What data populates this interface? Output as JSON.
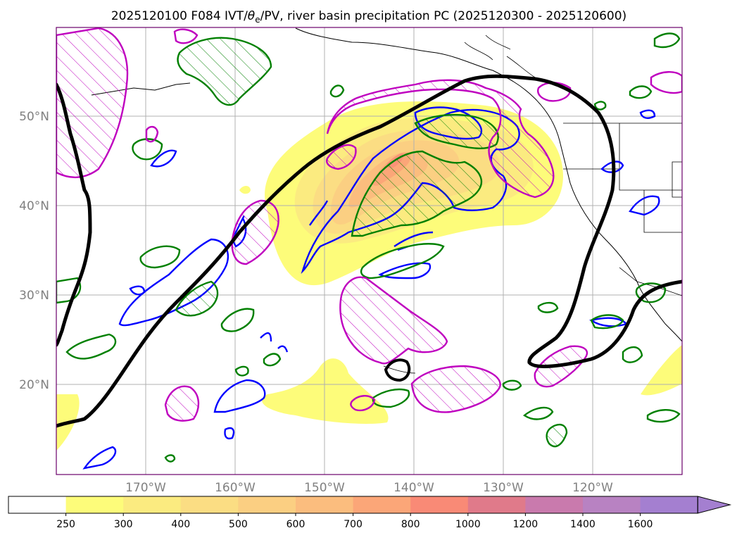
{
  "title": "2025120100 F084 IVT/θe/PV, river basin precipitation PC (2025120300 - 2025120600)",
  "title_parts": {
    "prefix": "2025120100 F084 IVT/",
    "theta": "θ",
    "sub": "e",
    "suffix": "/PV, river basin precipitation PC (2025120300 - 2025120600)"
  },
  "map": {
    "projection": "equirectangular",
    "lon_range": [
      -180,
      -110
    ],
    "lat_range": [
      10,
      60
    ],
    "lat_ticks": [
      {
        "value": 50,
        "label": "50°N"
      },
      {
        "value": 40,
        "label": "40°N"
      },
      {
        "value": 30,
        "label": "30°N"
      },
      {
        "value": 20,
        "label": "20°N"
      }
    ],
    "lon_ticks": [
      {
        "value": -170,
        "label": "170°W"
      },
      {
        "value": -160,
        "label": "160°W"
      },
      {
        "value": -150,
        "label": "150°W"
      },
      {
        "value": -140,
        "label": "140°W"
      },
      {
        "value": -130,
        "label": "130°W"
      },
      {
        "value": -120,
        "label": "120°W"
      }
    ],
    "gridlines": true,
    "grid_color": "#b0b0b0",
    "frame_color": "#6a006a",
    "layers": {
      "ivt_shading": "yellow-orange-red filled contours of IVT",
      "theta_e_contours": "green (hatched)",
      "pv_contours": "magenta (hatched)",
      "blue_contours": "blue",
      "thick_contour": "black"
    }
  },
  "colorbar": {
    "levels": [
      "250",
      "300",
      "400",
      "500",
      "600",
      "700",
      "800",
      "1000",
      "1200",
      "1400",
      "1600"
    ],
    "colors": [
      "#ffffff",
      "#fdfc7a",
      "#fbeb80",
      "#fbdd83",
      "#fbcf82",
      "#fbbd7e",
      "#fba678",
      "#f98a76",
      "#e07a8a",
      "#c97aad",
      "#b882c2",
      "#a47fd0"
    ],
    "extend": "max"
  },
  "colors": {
    "green": "#008000",
    "blue": "#0000ff",
    "magenta": "#bf00bf",
    "black": "#000000"
  }
}
